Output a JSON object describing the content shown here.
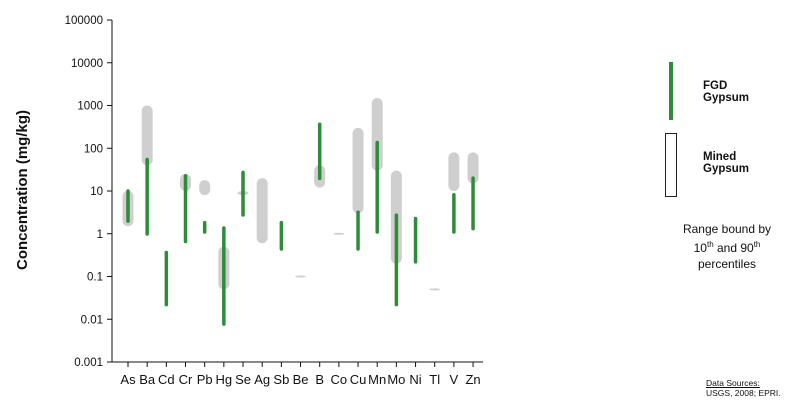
{
  "chart_data": {
    "type": "range",
    "ylabel": "Concentration (mg/kg)",
    "yscale": "log",
    "ylim": [
      0.001,
      100000
    ],
    "yticks": [
      "100000",
      "10000",
      "1000",
      "100",
      "10",
      "1",
      "0.1",
      "0.01",
      "0.001"
    ],
    "categories": [
      "As",
      "Ba",
      "Cd",
      "Cr",
      "Pb",
      "Hg",
      "Se",
      "Ag",
      "Sb",
      "Be",
      "B",
      "Co",
      "Cu",
      "Mn",
      "Mo",
      "Ni",
      "Tl",
      "V",
      "Zn"
    ],
    "series": [
      {
        "name": "FGD Gypsum",
        "color": "#2e8b3a",
        "ranges": [
          [
            1.8,
            11
          ],
          [
            0.9,
            60
          ],
          [
            0.02,
            0.4
          ],
          [
            0.6,
            25
          ],
          [
            1.0,
            2.0
          ],
          [
            0.007,
            1.5
          ],
          [
            2.5,
            30
          ],
          null,
          [
            0.4,
            2.0
          ],
          null,
          [
            18,
            400
          ],
          null,
          [
            0.4,
            3.5
          ],
          [
            1.0,
            150
          ],
          [
            0.02,
            3.0
          ],
          [
            0.2,
            2.5
          ],
          null,
          [
            1.0,
            9.0
          ],
          [
            1.2,
            22
          ]
        ]
      },
      {
        "name": "Mined Gypsum",
        "color": "#cfcfcf",
        "ranges": [
          [
            1.5,
            10
          ],
          [
            40,
            1000
          ],
          null,
          [
            10,
            25
          ],
          [
            8,
            18
          ],
          [
            0.05,
            0.5
          ],
          [
            8,
            10
          ],
          [
            0.6,
            20
          ],
          null,
          [
            0.1,
            0.1
          ],
          [
            12,
            40
          ],
          [
            1.0,
            1.0
          ],
          [
            3,
            300
          ],
          [
            30,
            1500
          ],
          [
            0.2,
            30
          ],
          null,
          [
            0.05,
            0.05
          ],
          [
            10,
            80
          ],
          [
            15,
            80
          ]
        ]
      }
    ],
    "legend": {
      "position": "right",
      "fgd_label": "FGD Gypsum",
      "mined_label": "Mined Gypsum"
    },
    "annotation": {
      "line1": "Range bound by",
      "n1": "10",
      "s1": "th",
      "mid": " and 90",
      "s2": "th",
      "line3": "percentiles"
    },
    "sources": {
      "heading": "Data Sources:",
      "text": "USGS, 2008;  EPRI."
    }
  }
}
